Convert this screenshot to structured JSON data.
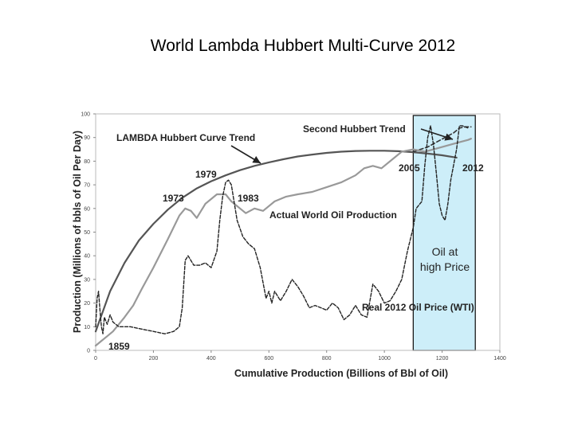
{
  "slide": {
    "title": "World Lambda Hubbert Multi-Curve 2012"
  },
  "chart_data": {
    "type": "line",
    "xlabel": "Cumulative Production (Billions of Bbl of Oil)",
    "ylabel": "Production (Millions of bbls of Oil Per Day)",
    "xlim": [
      0,
      1400
    ],
    "ylim": [
      0,
      100
    ],
    "x_ticks": [
      0,
      200,
      400,
      600,
      800,
      1000,
      1200,
      1400
    ],
    "y_ticks": [
      0,
      10,
      20,
      30,
      40,
      50,
      60,
      70,
      80,
      90,
      100
    ],
    "grid": false,
    "highlight_region": {
      "x": [
        1100,
        1315
      ],
      "label_lines": [
        "Oil at",
        "high Price"
      ],
      "color": "#cdeef9"
    },
    "annotations": {
      "lambda": "LAMBDA Hubbert Curve Trend",
      "second": "Second Hubbert Trend",
      "actual": "Actual World Oil Production",
      "price": "Real 2012 Oil Price (WTI)",
      "y1859": "1859",
      "y1973": "1973",
      "y1979": "1979",
      "y1983": "1983",
      "y2005": "2005",
      "y2012": "2012"
    },
    "series": [
      {
        "key": "lambda_trend",
        "color": "#555555",
        "dash": "",
        "width": 2.2,
        "x": [
          0,
          50,
          100,
          150,
          200,
          250,
          300,
          350,
          400,
          450,
          500,
          550,
          600,
          650,
          700,
          750,
          800,
          850,
          900,
          950,
          1000,
          1050,
          1100,
          1150,
          1200,
          1250
        ],
        "y": [
          8,
          25,
          37,
          46.5,
          53.5,
          59.5,
          64.5,
          68.5,
          71.5,
          74,
          76.2,
          78,
          79.5,
          80.8,
          82,
          82.8,
          83.5,
          84,
          84.3,
          84.4,
          84.4,
          84.2,
          83.8,
          83.2,
          82.5,
          81.5
        ]
      },
      {
        "key": "second_trend",
        "color": "#333333",
        "dash": "5,3",
        "width": 1.6,
        "x": [
          1100,
          1150,
          1180,
          1210,
          1240,
          1260,
          1280,
          1300
        ],
        "y": [
          84,
          86,
          88,
          90,
          92,
          94,
          94.5,
          94.5
        ]
      },
      {
        "key": "actual_production",
        "color": "#999999",
        "dash": "",
        "width": 2.2,
        "x": [
          0,
          20,
          40,
          60,
          80,
          100,
          130,
          160,
          200,
          250,
          290,
          310,
          330,
          350,
          380,
          420,
          450,
          470,
          500,
          520,
          550,
          580,
          620,
          660,
          700,
          750,
          800,
          850,
          900,
          930,
          960,
          990,
          1020,
          1060,
          1100,
          1140,
          1170,
          1200,
          1230,
          1260,
          1290,
          1300
        ],
        "y": [
          2,
          4,
          6,
          8,
          11,
          14,
          19,
          26,
          35,
          47,
          57,
          60,
          59,
          56,
          62,
          66,
          66,
          63,
          60,
          58,
          60,
          59,
          63,
          65,
          66,
          67,
          69,
          71,
          74,
          77,
          78,
          77,
          80,
          84,
          85,
          84,
          85,
          86,
          87,
          88,
          89,
          89.5
        ]
      },
      {
        "key": "oil_price",
        "color": "#222222",
        "dash": "4,2",
        "width": 1.4,
        "x": [
          0,
          5,
          10,
          15,
          20,
          25,
          30,
          40,
          50,
          60,
          80,
          120,
          160,
          200,
          240,
          270,
          290,
          300,
          310,
          320,
          340,
          360,
          380,
          400,
          420,
          430,
          440,
          450,
          460,
          470,
          490,
          510,
          530,
          550,
          570,
          590,
          600,
          610,
          620,
          640,
          660,
          680,
          700,
          720,
          740,
          760,
          780,
          800,
          820,
          840,
          860,
          880,
          900,
          920,
          940,
          960,
          980,
          1000,
          1020,
          1040,
          1060,
          1080,
          1100,
          1110,
          1130,
          1140,
          1150,
          1160,
          1170,
          1180,
          1190,
          1200,
          1210,
          1220,
          1230,
          1250,
          1260,
          1270,
          1290
        ],
        "y": [
          10,
          22,
          25,
          17,
          10,
          7,
          14,
          11,
          15,
          12,
          10,
          10,
          9,
          8,
          7,
          8,
          10,
          18,
          38,
          40,
          36,
          36,
          37,
          35,
          42,
          55,
          65,
          71,
          72,
          70,
          55,
          48,
          45,
          43,
          35,
          22,
          25,
          20,
          25,
          21,
          25,
          30,
          27,
          23,
          18,
          19,
          18,
          17,
          20,
          18,
          13,
          15,
          19,
          15,
          14,
          28,
          25,
          20,
          21,
          25,
          30,
          42,
          52,
          60,
          63,
          78,
          90,
          95,
          87,
          75,
          62,
          57,
          55,
          62,
          72,
          85,
          95,
          95,
          94
        ]
      }
    ]
  }
}
